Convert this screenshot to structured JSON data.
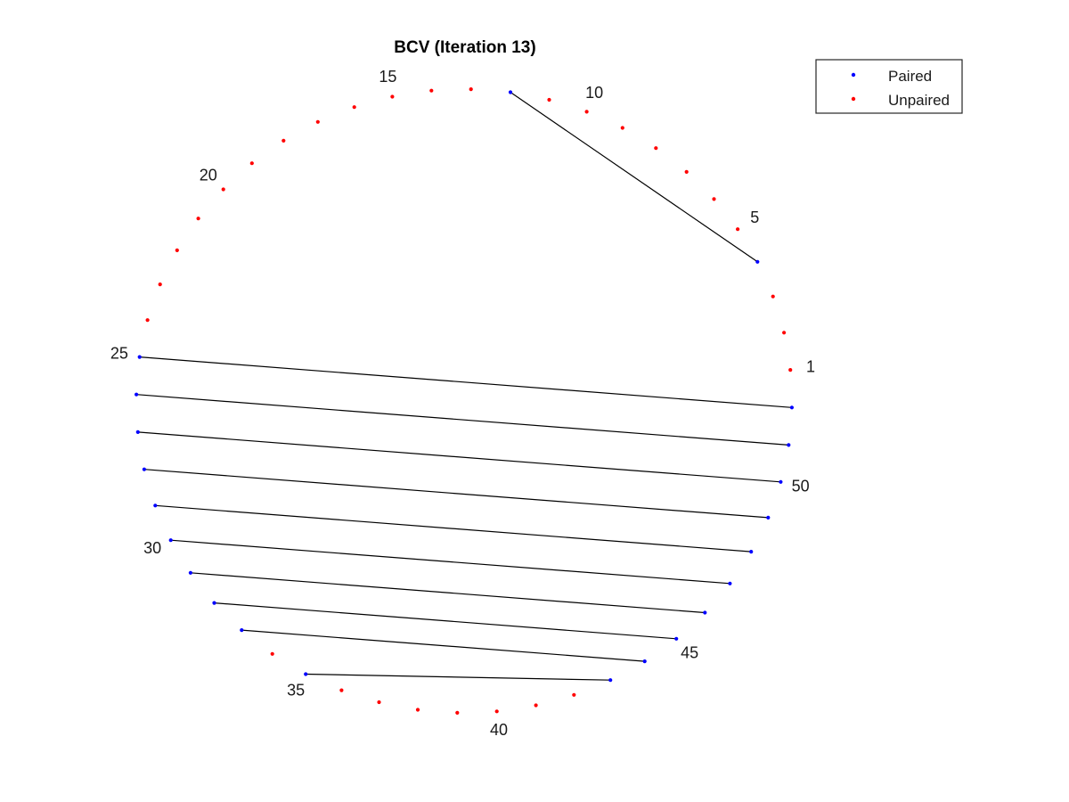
{
  "chart_data": {
    "type": "scatter",
    "title": "BCV (Iteration 13)",
    "node_count": 52,
    "index_labels": [
      "1",
      "5",
      "10",
      "15",
      "20",
      "25",
      "30",
      "35",
      "40",
      "45",
      "50"
    ],
    "pairs": [
      [
        4,
        12
      ],
      [
        25,
        52
      ],
      [
        26,
        51
      ],
      [
        27,
        50
      ],
      [
        28,
        49
      ],
      [
        29,
        48
      ],
      [
        30,
        47
      ],
      [
        31,
        46
      ],
      [
        32,
        45
      ],
      [
        33,
        44
      ],
      [
        35,
        43
      ]
    ],
    "series": [
      {
        "name": "Paired",
        "color": "#0000ff",
        "nodes": [
          4,
          12,
          25,
          26,
          27,
          28,
          29,
          30,
          31,
          32,
          33,
          35,
          43,
          44,
          45,
          46,
          47,
          48,
          49,
          50,
          51,
          52
        ]
      },
      {
        "name": "Unpaired",
        "color": "#ff0000",
        "nodes": [
          1,
          2,
          3,
          5,
          6,
          7,
          8,
          9,
          10,
          11,
          13,
          14,
          15,
          16,
          17,
          18,
          19,
          20,
          21,
          22,
          23,
          24,
          34,
          36,
          37,
          38,
          39,
          40,
          41,
          42
        ]
      }
    ],
    "line_color": "#000000",
    "grid": false,
    "axes_visible": false,
    "legend_position": "top-right"
  }
}
